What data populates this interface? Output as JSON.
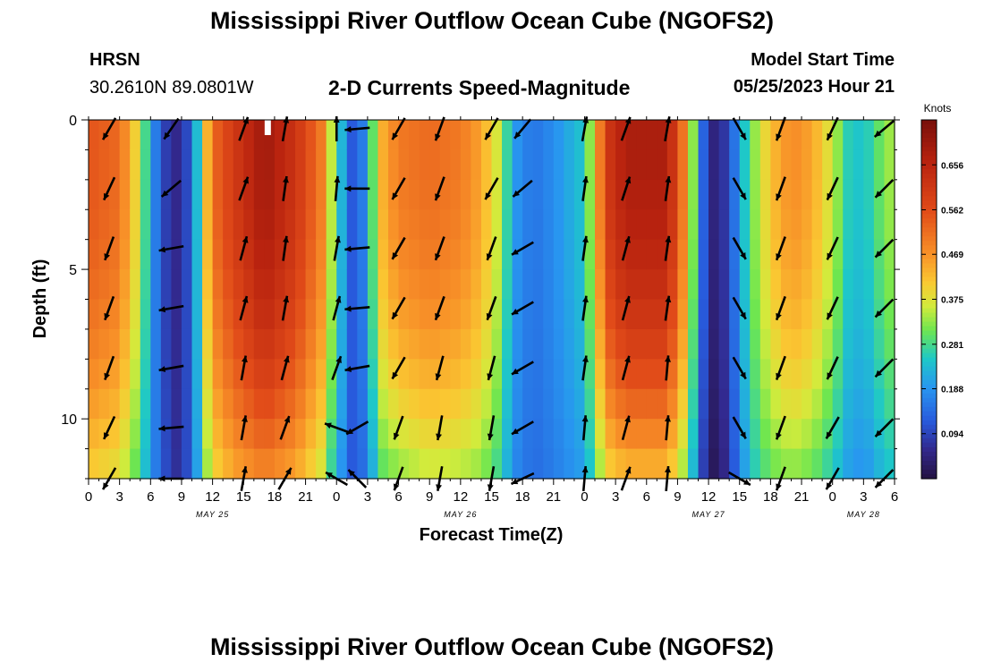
{
  "title": "Mississippi River Outflow Ocean Cube (NGOFS2)",
  "title_repeat": "Mississippi River Outflow Ocean Cube (NGOFS2)",
  "station": "HRSN",
  "coordinates": "30.2610N  89.0801W",
  "subtitle": "2-D Currents Speed-Magnitude",
  "model_start_label": "Model Start Time",
  "model_start_value": "05/25/2023 Hour 21",
  "chart_data": {
    "type": "heatmap",
    "title": "2-D Currents Speed-Magnitude",
    "xlabel": "Forecast Time(Z)",
    "ylabel": "Depth (ft)",
    "colorbar_label": "Knots",
    "colorbar_ticks": [
      0.094,
      0.188,
      0.281,
      0.375,
      0.469,
      0.562,
      0.656
    ],
    "colorbar_range": [
      0.0,
      0.75
    ],
    "x_range_hours": [
      0,
      78
    ],
    "x_tick_labels": [
      "0",
      "3",
      "6",
      "9",
      "12",
      "15",
      "18",
      "21",
      "0",
      "3",
      "6",
      "9",
      "12",
      "15",
      "18",
      "21",
      "0",
      "3",
      "6",
      "9",
      "12",
      "15",
      "18",
      "21",
      "0",
      "3",
      "6"
    ],
    "date_labels": [
      {
        "label": "MAY 25",
        "hour": 12
      },
      {
        "label": "MAY 26",
        "hour": 36
      },
      {
        "label": "MAY 27",
        "hour": 60
      },
      {
        "label": "MAY 28",
        "hour": 75
      }
    ],
    "y_range_ft": [
      0,
      12
    ],
    "y_tick_labels": [
      "0",
      "5",
      "10"
    ],
    "speed_profile": {
      "hours": [
        0,
        3,
        4.5,
        6,
        7,
        8.5,
        10,
        11,
        12,
        14,
        17,
        20,
        22.5,
        24,
        25.5,
        27,
        28,
        30,
        33,
        36,
        38,
        40,
        41,
        43,
        45,
        48,
        49,
        50,
        52,
        56,
        58,
        59,
        60,
        61,
        62.5,
        64,
        66,
        68,
        70,
        72,
        73.5,
        75,
        76.5,
        78
      ],
      "surface": [
        0.55,
        0.52,
        0.4,
        0.22,
        0.1,
        0.06,
        0.12,
        0.35,
        0.52,
        0.6,
        0.7,
        0.62,
        0.5,
        0.28,
        0.12,
        0.18,
        0.42,
        0.5,
        0.52,
        0.5,
        0.45,
        0.34,
        0.2,
        0.15,
        0.18,
        0.25,
        0.4,
        0.6,
        0.68,
        0.68,
        0.45,
        0.2,
        0.06,
        0.04,
        0.15,
        0.3,
        0.42,
        0.48,
        0.45,
        0.36,
        0.26,
        0.24,
        0.3,
        0.35
      ],
      "bottom": [
        0.4,
        0.37,
        0.3,
        0.2,
        0.12,
        0.07,
        0.12,
        0.28,
        0.38,
        0.44,
        0.48,
        0.44,
        0.36,
        0.22,
        0.12,
        0.15,
        0.28,
        0.32,
        0.35,
        0.34,
        0.32,
        0.26,
        0.18,
        0.14,
        0.16,
        0.2,
        0.28,
        0.38,
        0.42,
        0.42,
        0.3,
        0.15,
        0.02,
        0.02,
        0.12,
        0.24,
        0.3,
        0.32,
        0.3,
        0.25,
        0.2,
        0.18,
        0.22,
        0.25
      ]
    },
    "vector_columns": [
      {
        "hour": 2,
        "dir": [
          210,
          205,
          200,
          200,
          200,
          205,
          210
        ]
      },
      {
        "hour": 8,
        "dir": [
          215,
          230,
          260,
          260,
          260,
          265,
          270
        ]
      },
      {
        "hour": 15,
        "dir": [
          20,
          20,
          15,
          15,
          10,
          10,
          10
        ]
      },
      {
        "hour": 19,
        "dir": [
          10,
          8,
          8,
          10,
          15,
          20,
          30
        ]
      },
      {
        "hour": 24,
        "dir": [
          0,
          5,
          10,
          15,
          20,
          290,
          300
        ]
      },
      {
        "hour": 26,
        "dir": [
          265,
          270,
          265,
          265,
          260,
          240,
          315
        ]
      },
      {
        "hour": 30,
        "dir": [
          210,
          210,
          210,
          210,
          210,
          200,
          200
        ]
      },
      {
        "hour": 34,
        "dir": [
          200,
          200,
          200,
          200,
          195,
          190,
          190
        ]
      },
      {
        "hour": 39,
        "dir": [
          210,
          210,
          200,
          200,
          195,
          190,
          190
        ]
      },
      {
        "hour": 42,
        "dir": [
          220,
          230,
          240,
          240,
          240,
          240,
          245
        ]
      },
      {
        "hour": 48,
        "dir": [
          10,
          8,
          8,
          8,
          8,
          5,
          5
        ]
      },
      {
        "hour": 52,
        "dir": [
          20,
          18,
          15,
          15,
          15,
          15,
          20
        ]
      },
      {
        "hour": 56,
        "dir": [
          10,
          8,
          8,
          8,
          5,
          5,
          5
        ]
      },
      {
        "hour": 63,
        "dir": [
          150,
          150,
          150,
          150,
          150,
          150,
          120
        ]
      },
      {
        "hour": 67,
        "dir": [
          200,
          200,
          200,
          200,
          200,
          200,
          200
        ]
      },
      {
        "hour": 72,
        "dir": [
          205,
          205,
          205,
          205,
          205,
          210,
          210
        ]
      },
      {
        "hour": 77,
        "dir": [
          230,
          225,
          225,
          225,
          225,
          225,
          225
        ]
      }
    ]
  }
}
